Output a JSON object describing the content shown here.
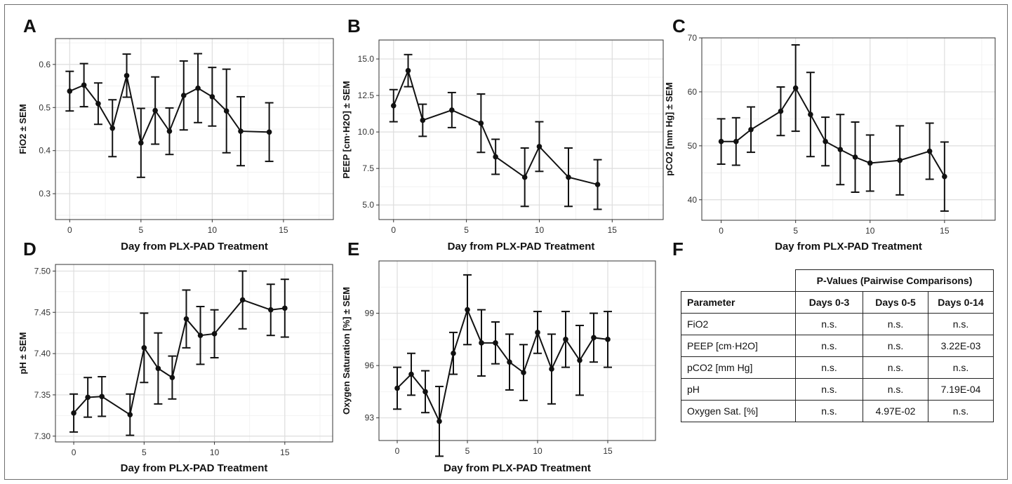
{
  "chart_data": [
    {
      "panel": "A",
      "type": "line",
      "xlabel": "Day from PLX-PAD Treatment",
      "ylabel": "FiO2 ± SEM",
      "xlim": [
        -1,
        18.5
      ],
      "ylim": [
        0.24,
        0.66
      ],
      "xticks": [
        0,
        5,
        10,
        15
      ],
      "yticks": [
        0.3,
        0.4,
        0.5,
        0.6
      ],
      "ytick_labels": [
        "0.3",
        "0.4",
        "0.5",
        "0.6"
      ],
      "x": [
        0,
        1,
        2,
        3,
        4,
        5,
        6,
        7,
        8,
        9,
        10,
        11,
        12,
        14
      ],
      "y": [
        0.538,
        0.552,
        0.509,
        0.452,
        0.574,
        0.418,
        0.493,
        0.445,
        0.528,
        0.545,
        0.525,
        0.492,
        0.445,
        0.443
      ],
      "err": [
        0.046,
        0.05,
        0.048,
        0.066,
        0.05,
        0.08,
        0.078,
        0.054,
        0.08,
        0.08,
        0.068,
        0.097,
        0.08,
        0.068
      ]
    },
    {
      "panel": "B",
      "type": "line",
      "xlabel": "Day from PLX-PAD Treatment",
      "ylabel": "PEEP [cm·H2O] ± SEM",
      "xlim": [
        -1,
        18.5
      ],
      "ylim": [
        4.0,
        16.3
      ],
      "xticks": [
        0,
        5,
        10,
        15
      ],
      "yticks": [
        5.0,
        7.5,
        10.0,
        12.5,
        15.0
      ],
      "ytick_labels": [
        "5.0",
        "7.5",
        "10.0",
        "12.5",
        "15.0"
      ],
      "x": [
        0,
        1,
        2,
        4,
        6,
        7,
        9,
        10,
        12,
        14
      ],
      "y": [
        11.8,
        14.2,
        10.8,
        11.5,
        10.6,
        8.3,
        6.9,
        9.0,
        6.9,
        6.4
      ],
      "err": [
        1.1,
        1.1,
        1.1,
        1.2,
        2.0,
        1.2,
        2.0,
        1.7,
        2.0,
        1.7
      ]
    },
    {
      "panel": "C",
      "type": "line",
      "xlabel": "Day from PLX-PAD Treatment",
      "ylabel": "pCO2 [mm Hg] ± SEM",
      "xlim": [
        -1.3,
        18.4
      ],
      "ylim": [
        36.2,
        70.0
      ],
      "xticks": [
        0,
        5,
        10,
        15
      ],
      "yticks": [
        40,
        50,
        60,
        70
      ],
      "ytick_labels": [
        "40",
        "50",
        "60",
        "70"
      ],
      "x": [
        0,
        1,
        2,
        4,
        5,
        6,
        7,
        8,
        9,
        10,
        12,
        14,
        15
      ],
      "y": [
        50.8,
        50.8,
        53.0,
        56.4,
        60.7,
        55.8,
        50.8,
        49.3,
        47.9,
        46.8,
        47.3,
        49.0,
        44.3
      ],
      "err": [
        4.2,
        4.4,
        4.2,
        4.5,
        8.0,
        7.8,
        4.5,
        6.5,
        6.5,
        5.2,
        6.4,
        5.2,
        6.4
      ]
    },
    {
      "panel": "D",
      "type": "line",
      "xlabel": "Day from PLX-PAD Treatment",
      "ylabel": "pH ± SEM",
      "xlim": [
        -1.3,
        18.4
      ],
      "ylim": [
        7.293,
        7.508
      ],
      "xticks": [
        0,
        5,
        10,
        15
      ],
      "yticks": [
        7.3,
        7.35,
        7.4,
        7.45,
        7.5
      ],
      "ytick_labels": [
        "7.30",
        "7.35",
        "7.40",
        "7.45",
        "7.50"
      ],
      "x": [
        0,
        1,
        2,
        4,
        5,
        6,
        7,
        8,
        9,
        10,
        12,
        14,
        15
      ],
      "y": [
        7.328,
        7.347,
        7.348,
        7.326,
        7.407,
        7.382,
        7.371,
        7.442,
        7.422,
        7.424,
        7.465,
        7.453,
        7.455
      ],
      "err": [
        0.023,
        0.024,
        0.024,
        0.025,
        0.042,
        0.043,
        0.026,
        0.035,
        0.035,
        0.029,
        0.035,
        0.031,
        0.035
      ]
    },
    {
      "panel": "E",
      "type": "line",
      "xlabel": "Day from PLX-PAD Treatment",
      "ylabel": "Oxygen Saturation [%] ± SEM",
      "xlim": [
        -1.3,
        18.4
      ],
      "ylim": [
        91.7,
        102.0
      ],
      "xticks": [
        0,
        5,
        10,
        15
      ],
      "yticks": [
        93,
        96,
        99
      ],
      "ytick_labels": [
        "93",
        "96",
        "99"
      ],
      "x": [
        0,
        1,
        2,
        3,
        4,
        5,
        6,
        7,
        8,
        9,
        10,
        11,
        12,
        13,
        14,
        15
      ],
      "y": [
        94.7,
        95.5,
        94.5,
        92.8,
        96.7,
        99.2,
        97.3,
        97.3,
        96.2,
        95.6,
        97.9,
        95.8,
        97.5,
        96.3,
        97.6,
        97.5
      ],
      "err": [
        1.2,
        1.2,
        1.2,
        2.0,
        1.2,
        2.0,
        1.9,
        1.2,
        1.6,
        1.6,
        1.2,
        2.0,
        1.6,
        2.0,
        1.4,
        1.6
      ]
    }
  ],
  "panels": {
    "A": "A",
    "B": "B",
    "C": "C",
    "D": "D",
    "E": "E",
    "F": "F"
  },
  "table": {
    "group_header": "P-Values (Pairwise Comparisons)",
    "columns": [
      "Parameter",
      "Days 0-3",
      "Days 0-5",
      "Days 0-14"
    ],
    "rows": [
      [
        "FiO2",
        "n.s.",
        "n.s.",
        "n.s."
      ],
      [
        "PEEP [cm·H2O]",
        "n.s.",
        "n.s.",
        "3.22E-03"
      ],
      [
        "pCO2 [mm Hg]",
        "n.s.",
        "n.s.",
        "n.s."
      ],
      [
        "pH",
        "n.s.",
        "n.s.",
        "7.19E-04"
      ],
      [
        "Oxygen Sat. [%]",
        "n.s.",
        "4.97E-02",
        "n.s."
      ]
    ]
  }
}
